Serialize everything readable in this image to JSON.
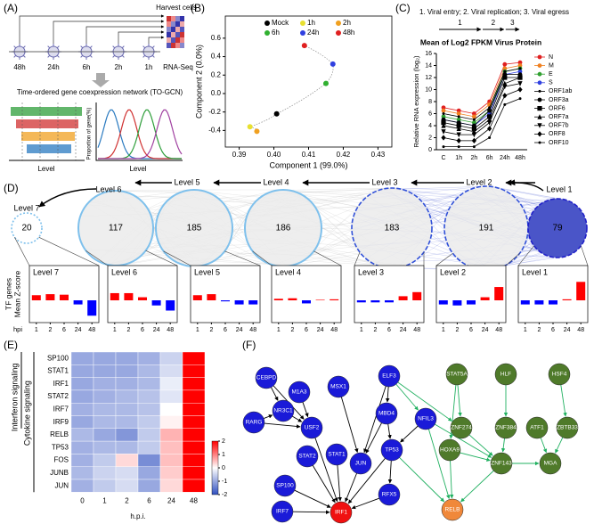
{
  "panel_labels": [
    "(A)",
    "(B)",
    "(C)",
    "(D)",
    "(E)",
    "(F)"
  ],
  "panel_a": {
    "harvest_label": "Harvest cells",
    "timepoints": [
      "48h",
      "24h",
      "6h",
      "2h",
      "1h"
    ],
    "sequencing_label": "RNA-Seq",
    "network_label": "Time-ordered gene coexpression network (TO-GCN)",
    "x_label": "Level",
    "y_label": "Proportion of gene(%)"
  },
  "panel_d_network": {
    "levels": [
      {
        "label": "Level 7",
        "count": 20
      },
      {
        "label": "Level 6",
        "count": 117
      },
      {
        "label": "Level 5",
        "count": 185
      },
      {
        "label": "Level 4",
        "count": 186
      },
      {
        "label": "Level 3",
        "count": 183
      },
      {
        "label": "Level 2",
        "count": 191
      },
      {
        "label": "Level 1",
        "count": 79
      }
    ]
  },
  "panel_f_network": {
    "nodes": [
      {
        "label": "CEBPD",
        "color": "#1a1ad8"
      },
      {
        "label": "M1A3",
        "color": "#1a1ad8"
      },
      {
        "label": "MSX1",
        "color": "#1a1ad8"
      },
      {
        "label": "ELF3",
        "color": "#1a1ad8"
      },
      {
        "label": "NR3C1",
        "color": "#1a1ad8"
      },
      {
        "label": "RARG",
        "color": "#1a1ad8"
      },
      {
        "label": "USF2",
        "color": "#1a1ad8"
      },
      {
        "label": "STAT2",
        "color": "#1a1ad8"
      },
      {
        "label": "STAT1",
        "color": "#1a1ad8"
      },
      {
        "label": "JUN",
        "color": "#1a1ad8"
      },
      {
        "label": "MBD4",
        "color": "#1a1ad8"
      },
      {
        "label": "TP53",
        "color": "#1a1ad8"
      },
      {
        "label": "NFIL3",
        "color": "#1a1ad8"
      },
      {
        "label": "SP100",
        "color": "#1a1ad8"
      },
      {
        "label": "IRF7",
        "color": "#1a1ad8"
      },
      {
        "label": "IRF1",
        "color": "#f01010"
      },
      {
        "label": "RFX5",
        "color": "#1a1ad8"
      },
      {
        "label": "RELB",
        "color": "#f0883a"
      },
      {
        "label": "STAT5A",
        "color": "#4f7a2a"
      },
      {
        "label": "HLF",
        "color": "#4f7a2a"
      },
      {
        "label": "HSF4",
        "color": "#4f7a2a"
      },
      {
        "label": "ZNF274",
        "color": "#4f7a2a"
      },
      {
        "label": "ZNF384",
        "color": "#4f7a2a"
      },
      {
        "label": "ATF1",
        "color": "#4f7a2a"
      },
      {
        "label": "ZBTB33",
        "color": "#4f7a2a"
      },
      {
        "label": "HOXA9",
        "color": "#4f7a2a"
      },
      {
        "label": "ZNF143",
        "color": "#4f7a2a"
      },
      {
        "label": "MGA",
        "color": "#4f7a2a"
      }
    ],
    "edges": [
      {
        "from": 0,
        "to": 4,
        "color": "black"
      },
      {
        "from": 0,
        "to": 6,
        "color": "black"
      },
      {
        "from": 5,
        "to": 4,
        "color": "black"
      },
      {
        "from": 5,
        "to": 6,
        "color": "black"
      },
      {
        "from": 4,
        "to": 6,
        "color": "black"
      },
      {
        "from": 1,
        "to": 6,
        "color": "black"
      },
      {
        "from": 2,
        "to": 9,
        "color": "black"
      },
      {
        "from": 3,
        "to": 10,
        "color": "black"
      },
      {
        "from": 3,
        "to": 9,
        "color": "black"
      },
      {
        "from": 10,
        "to": 9,
        "color": "black"
      },
      {
        "from": 10,
        "to": 11,
        "color": "black"
      },
      {
        "from": 12,
        "to": 11,
        "color": "black"
      },
      {
        "from": 6,
        "to": 15,
        "color": "black"
      },
      {
        "from": 7,
        "to": 15,
        "color": "black"
      },
      {
        "from": 8,
        "to": 15,
        "color": "black"
      },
      {
        "from": 9,
        "to": 15,
        "color": "black"
      },
      {
        "from": 11,
        "to": 15,
        "color": "black"
      },
      {
        "from": 13,
        "to": 15,
        "color": "black"
      },
      {
        "from": 14,
        "to": 15,
        "color": "black"
      },
      {
        "from": 16,
        "to": 15,
        "color": "black"
      },
      {
        "from": 11,
        "to": 16,
        "color": "black"
      },
      {
        "from": 3,
        "to": 12,
        "color": "#20b060"
      },
      {
        "from": 3,
        "to": 21,
        "color": "#20b060"
      },
      {
        "from": 18,
        "to": 21,
        "color": "#20b060"
      },
      {
        "from": 18,
        "to": 25,
        "color": "#20b060"
      },
      {
        "from": 19,
        "to": 22,
        "color": "#20b060"
      },
      {
        "from": 20,
        "to": 24,
        "color": "#20b060"
      },
      {
        "from": 21,
        "to": 26,
        "color": "#20b060"
      },
      {
        "from": 22,
        "to": 26,
        "color": "#20b060"
      },
      {
        "from": 25,
        "to": 26,
        "color": "#20b060"
      },
      {
        "from": 23,
        "to": 27,
        "color": "#20b060"
      },
      {
        "from": 24,
        "to": 27,
        "color": "#20b060"
      },
      {
        "from": 26,
        "to": 27,
        "color": "#20b060"
      },
      {
        "from": 26,
        "to": 17,
        "color": "#20b060"
      },
      {
        "from": 11,
        "to": 17,
        "color": "#20b060"
      },
      {
        "from": 12,
        "to": 17,
        "color": "#20b060"
      },
      {
        "from": 25,
        "to": 17,
        "color": "#20b060"
      },
      {
        "from": 12,
        "to": 26,
        "color": "#20b060"
      }
    ]
  },
  "chart_data": [
    {
      "type": "scatter",
      "xlabel": "Component 1 (99.0%)",
      "ylabel": "Component 2 (0.0%)",
      "xlim": [
        0.386,
        0.434
      ],
      "ylim": [
        -0.58,
        0.84
      ],
      "xticks": [
        0.39,
        {
          "value": 0.4,
          "label": "0.40"
        },
        0.41,
        0.42,
        0.43
      ],
      "yticks": [
        -0.4,
        -0.2,
        {
          "value": 0,
          "label": "0.0"
        },
        0.2,
        0.4,
        0.6
      ],
      "series": [
        {
          "name": "Mock",
          "color": "#000000",
          "x": [
            0.4008
          ],
          "values": [
            -0.22
          ]
        },
        {
          "name": "1h",
          "color": "#e8e030",
          "x": [
            0.3931
          ],
          "values": [
            -0.36
          ]
        },
        {
          "name": "2h",
          "color": "#f0a020",
          "x": [
            0.3951
          ],
          "values": [
            -0.41
          ]
        },
        {
          "name": "6h",
          "color": "#30b030",
          "x": [
            0.415
          ],
          "values": [
            0.11
          ]
        },
        {
          "name": "24h",
          "color": "#3040e0",
          "x": [
            0.417
          ],
          "values": [
            0.32
          ]
        },
        {
          "name": "48h",
          "color": "#e02020",
          "x": [
            0.4088
          ],
          "values": [
            0.52
          ]
        }
      ]
    },
    {
      "type": "line",
      "title": "Mean of Log2 FPKM Virus Protein",
      "annotation": "1. Viral entry; 2. Viral replication; 3. Viral egress",
      "phases": [
        "1",
        "2",
        "3"
      ],
      "ylabel": "Relative RNA expression (log₂)",
      "categories": [
        "C",
        "1h",
        "2h",
        "6h",
        "24h",
        "48h"
      ],
      "ylim": [
        0,
        16
      ],
      "yticks": [
        0,
        2,
        4,
        6,
        8,
        10,
        12,
        14,
        16
      ],
      "series": [
        {
          "name": "N",
          "color": "#e02020",
          "marker": "circle",
          "values": [
            7,
            6.5,
            6,
            8,
            14.2,
            14.5
          ]
        },
        {
          "name": "M",
          "color": "#f08020",
          "marker": "circle",
          "values": [
            6.5,
            6,
            5.5,
            7.5,
            13.5,
            14
          ]
        },
        {
          "name": "E",
          "color": "#30a030",
          "marker": "circle",
          "values": [
            5.5,
            5,
            4.5,
            6.5,
            13,
            13.5
          ]
        },
        {
          "name": "S",
          "color": "#3040e0",
          "marker": "circle",
          "values": [
            5,
            4.5,
            4,
            6,
            12.5,
            13
          ]
        },
        {
          "name": "ORF1ab",
          "color": "#000000",
          "marker": "dot",
          "values": [
            6,
            5.5,
            5,
            7,
            13,
            13.5
          ]
        },
        {
          "name": "ORF3a",
          "color": "#000000",
          "marker": "circle",
          "values": [
            5,
            4.5,
            4,
            6.5,
            12.5,
            12.5
          ]
        },
        {
          "name": "ORF6",
          "color": "#000000",
          "marker": "square",
          "values": [
            4.5,
            4,
            3.5,
            5.5,
            12,
            12
          ]
        },
        {
          "name": "ORF7a",
          "color": "#000000",
          "marker": "triangle",
          "values": [
            4,
            3.5,
            3,
            5,
            11,
            12
          ]
        },
        {
          "name": "ORF7b",
          "color": "#000000",
          "marker": "triangle-down",
          "values": [
            3,
            2.5,
            2.5,
            4.5,
            10.5,
            11
          ]
        },
        {
          "name": "ORF8",
          "color": "#000000",
          "marker": "diamond",
          "values": [
            2,
            1.5,
            1.5,
            3.5,
            9,
            10
          ]
        },
        {
          "name": "ORF10",
          "color": "#000000",
          "marker": "dot",
          "values": [
            0.5,
            0.5,
            0.5,
            2,
            7.5,
            8.5
          ]
        }
      ]
    },
    {
      "type": "bar",
      "title": "Level 7",
      "xlabel": "hpi",
      "ylabel": [
        "TF genes",
        "Mean Z-score"
      ],
      "categories": [
        "1",
        "2",
        "6",
        "24",
        "48"
      ],
      "values": [
        0.5,
        0.6,
        0.55,
        -0.4,
        -1.5
      ],
      "ylim": [
        -2,
        2
      ],
      "pos_color": "#ff0000",
      "neg_color": "#0000ff"
    },
    {
      "type": "bar",
      "title": "Level 6",
      "categories": [
        "1",
        "2",
        "6",
        "24",
        "48"
      ],
      "values": [
        0.7,
        0.7,
        0.3,
        -0.5,
        -1.0
      ],
      "ylim": [
        -2,
        2
      ],
      "pos_color": "#ff0000",
      "neg_color": "#0000ff"
    },
    {
      "type": "bar",
      "title": "Level 5",
      "categories": [
        "1",
        "2",
        "6",
        "24",
        "48"
      ],
      "values": [
        0.5,
        0.6,
        -0.1,
        -0.4,
        -0.4
      ],
      "ylim": [
        -2,
        2
      ],
      "pos_color": "#ff0000",
      "neg_color": "#0000ff"
    },
    {
      "type": "bar",
      "title": "Level 4",
      "categories": [
        "1",
        "2",
        "6",
        "24",
        "48"
      ],
      "values": [
        0.15,
        0.2,
        -0.3,
        0.05,
        0.1
      ],
      "ylim": [
        -2,
        2
      ],
      "pos_color": "#ff0000",
      "neg_color": "#0000ff"
    },
    {
      "type": "bar",
      "title": "Level 3",
      "categories": [
        "1",
        "2",
        "6",
        "24",
        "48"
      ],
      "values": [
        -0.2,
        -0.2,
        -0.2,
        0.4,
        0.8
      ],
      "ylim": [
        -2,
        2
      ],
      "pos_color": "#ff0000",
      "neg_color": "#0000ff"
    },
    {
      "type": "bar",
      "title": "Level 2",
      "categories": [
        "1",
        "2",
        "6",
        "24",
        "48"
      ],
      "values": [
        -0.4,
        -0.5,
        -0.4,
        0.3,
        1.3
      ],
      "ylim": [
        -2,
        2
      ],
      "pos_color": "#ff0000",
      "neg_color": "#0000ff"
    },
    {
      "type": "bar",
      "title": "Level 1",
      "categories": [
        "1",
        "2",
        "6",
        "24",
        "48"
      ],
      "values": [
        -0.4,
        -0.4,
        -0.4,
        0.1,
        1.8
      ],
      "ylim": [
        -2,
        2
      ],
      "pos_color": "#ff0000",
      "neg_color": "#0000ff"
    },
    {
      "type": "heatmap",
      "xlabel": "h.p.i.",
      "row_groups": [
        "Interferon signaling",
        "Cytokine signaling"
      ],
      "rows": [
        "SP100",
        "STAT1",
        "IRF1",
        "STAT2",
        "IRF7",
        "IRF9",
        "RELB",
        "TP53",
        "FOS",
        "JUNB",
        "JUN"
      ],
      "categories": [
        "0",
        "1",
        "2",
        "6",
        "24",
        "48"
      ],
      "values": [
        [
          -1,
          -1,
          -1,
          -0.9,
          -0.5,
          2
        ],
        [
          -1,
          -1,
          -1,
          -0.8,
          -0.4,
          2
        ],
        [
          -1,
          -0.9,
          -0.9,
          -0.8,
          -0.2,
          2
        ],
        [
          -1,
          -0.9,
          -0.8,
          -0.7,
          -0.3,
          2
        ],
        [
          -0.9,
          -0.8,
          -0.8,
          -0.7,
          0,
          2
        ],
        [
          -1,
          -0.8,
          -0.8,
          -0.6,
          0.1,
          2
        ],
        [
          -0.8,
          -1,
          -1.2,
          -0.6,
          0.6,
          2
        ],
        [
          -0.9,
          -0.8,
          -0.8,
          -0.6,
          0.5,
          2
        ],
        [
          -0.9,
          -0.6,
          0.3,
          -1.3,
          0.5,
          2
        ],
        [
          -0.8,
          -0.5,
          -0.4,
          -1,
          0.4,
          2
        ],
        [
          -0.9,
          -0.6,
          -0.4,
          -1,
          0.3,
          2
        ]
      ],
      "zlim": [
        -2,
        2
      ],
      "zticks": [
        2,
        1,
        0,
        -1,
        -2
      ],
      "colorscale": [
        "#3050c0",
        "#ffffff",
        "#ff0000"
      ]
    }
  ]
}
